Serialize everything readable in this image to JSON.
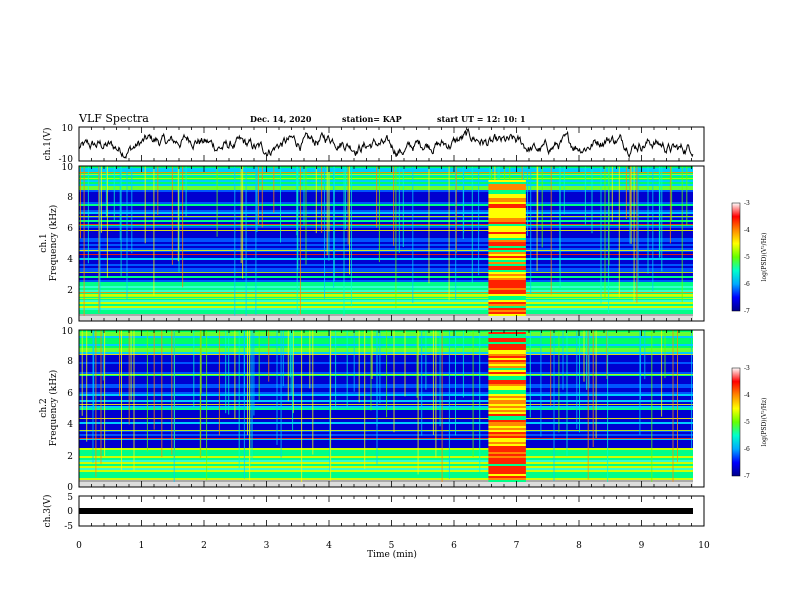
{
  "header": {
    "title": "VLF Spectra",
    "date": "Dec. 14, 2020",
    "station": "station= KAP",
    "start": "start  UT  =   12: 10: 1"
  },
  "chart_data": [
    {
      "type": "line",
      "name": "ch1-waveform",
      "ylabel": "ch.1(V)",
      "ylim": [
        -10,
        10
      ],
      "yticks": [
        "10",
        "-10"
      ],
      "xlim": [
        0,
        10
      ],
      "color": "#000000"
    },
    {
      "type": "heatmap",
      "name": "ch1-spectrogram",
      "ylabel_line1": "ch.1",
      "ylabel_line2": "Frequency  (kHz)",
      "ylim": [
        0,
        10
      ],
      "yticks": [
        "0",
        "2",
        "4",
        "6",
        "8",
        "10"
      ],
      "xlim": [
        0,
        10
      ],
      "burst_interval_min": [
        6.55,
        7.15
      ],
      "colorbar": {
        "range": [
          -7,
          -3
        ],
        "ticks": [
          "-3",
          "-4",
          "-5",
          "-6",
          "-7"
        ],
        "label": "log(PSD)(V²/Hz)"
      }
    },
    {
      "type": "heatmap",
      "name": "ch2-spectrogram",
      "ylabel_line1": "ch.2",
      "ylabel_line2": "Frequency  (kHz)",
      "ylim": [
        0,
        10
      ],
      "yticks": [
        "0",
        "2",
        "4",
        "6",
        "8",
        "10"
      ],
      "xlim": [
        0,
        10
      ],
      "burst_interval_min": [
        6.55,
        7.15
      ],
      "colorbar": {
        "range": [
          -7,
          -3
        ],
        "ticks": [
          "-3",
          "-4",
          "-5",
          "-6",
          "-7"
        ],
        "label": "log(PSD)(V²/Hz)"
      }
    },
    {
      "type": "line",
      "name": "ch3-signal",
      "ylabel": "ch.3(V)",
      "ylim": [
        -5,
        5
      ],
      "yticks": [
        "5",
        "0",
        "-5"
      ],
      "xlim": [
        0,
        10
      ],
      "approx_level_V": 0,
      "color": "#000000"
    }
  ],
  "xaxis": {
    "label": "Time  (min)",
    "ticks": [
      "0",
      "1",
      "2",
      "3",
      "4",
      "5",
      "6",
      "7",
      "8",
      "9",
      "10"
    ]
  },
  "colors": {
    "colormap": [
      "#0000c8",
      "#0044ff",
      "#00ccff",
      "#00ff66",
      "#ccff00",
      "#ff8800",
      "#ff0000",
      "#ffffff"
    ]
  }
}
